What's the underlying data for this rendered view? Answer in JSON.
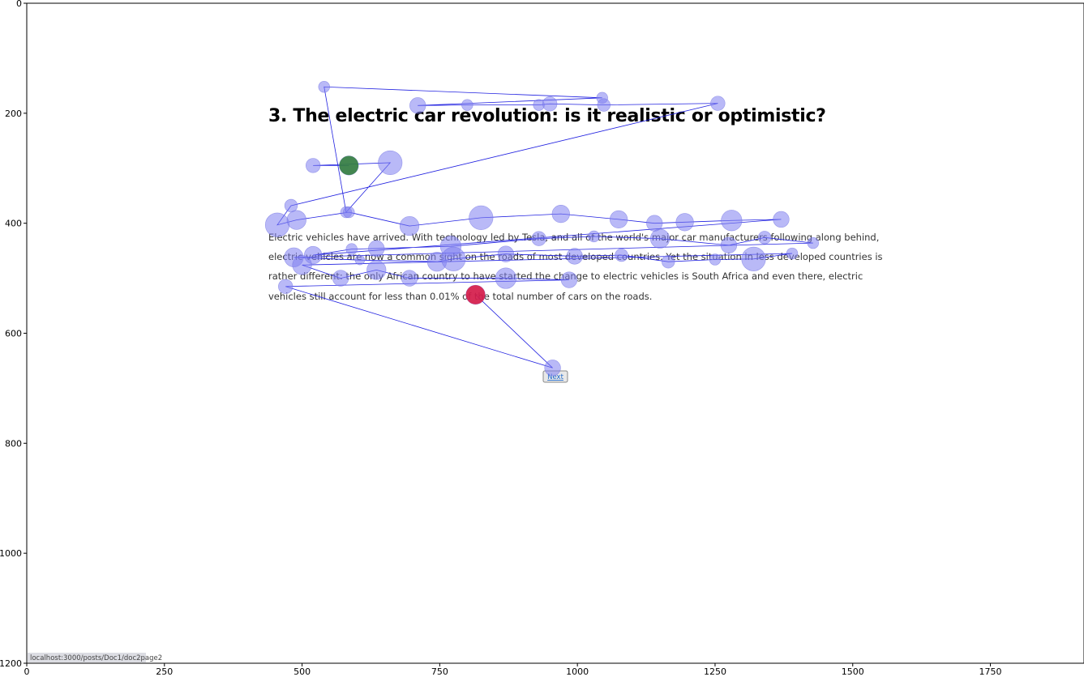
{
  "page": {
    "title": "3. The electric car revolution: is it realistic or optimistic?",
    "paragraph_lines": [
      "Electric vehicles have arrived. With technology led by Tesla, and all of the world's major car manufacturers following along behind,",
      "electric vehicles are now a common sight on the roads of most developed countries. Yet the situation in less developed countries is",
      "rather different: the only African country to have started the change to electric vehicles is South Africa and even there, electric",
      "vehicles still account for less than 0.01% of the total number of cars on the roads."
    ],
    "next_button_label": "Next",
    "status_url": "localhost:3000/posts/Doc1/doc2page2"
  },
  "chart_data": {
    "type": "scatter",
    "xlim": [
      0,
      1920
    ],
    "ylim": [
      1200,
      0
    ],
    "x_ticks": [
      0,
      250,
      500,
      750,
      1000,
      1250,
      1500,
      1750
    ],
    "y_ticks": [
      0,
      200,
      400,
      600,
      800,
      1000,
      1200
    ],
    "colors": {
      "fixation": "#8080f0",
      "path": "#2020e0",
      "start": "#2e7d32",
      "end": "#dc143c"
    },
    "start_point": {
      "x": 585,
      "y": 295,
      "r": 12
    },
    "end_point": {
      "x": 815,
      "y": 530,
      "r": 12
    },
    "path": [
      {
        "x": 585,
        "y": 295,
        "r": 12
      },
      {
        "x": 520,
        "y": 295,
        "r": 9
      },
      {
        "x": 660,
        "y": 290,
        "r": 15
      },
      {
        "x": 580,
        "y": 380,
        "r": 7
      },
      {
        "x": 540,
        "y": 152,
        "r": 7
      },
      {
        "x": 1045,
        "y": 172,
        "r": 7
      },
      {
        "x": 710,
        "y": 186,
        "r": 10
      },
      {
        "x": 800,
        "y": 185,
        "r": 7
      },
      {
        "x": 930,
        "y": 185,
        "r": 7
      },
      {
        "x": 950,
        "y": 183,
        "r": 9
      },
      {
        "x": 1048,
        "y": 185,
        "r": 8
      },
      {
        "x": 1255,
        "y": 182,
        "r": 9
      },
      {
        "x": 480,
        "y": 368,
        "r": 8
      },
      {
        "x": 455,
        "y": 403,
        "r": 15
      },
      {
        "x": 490,
        "y": 394,
        "r": 12
      },
      {
        "x": 585,
        "y": 380,
        "r": 7
      },
      {
        "x": 695,
        "y": 405,
        "r": 12
      },
      {
        "x": 825,
        "y": 390,
        "r": 15
      },
      {
        "x": 970,
        "y": 383,
        "r": 11
      },
      {
        "x": 1075,
        "y": 393,
        "r": 11
      },
      {
        "x": 1140,
        "y": 400,
        "r": 10
      },
      {
        "x": 1195,
        "y": 398,
        "r": 11
      },
      {
        "x": 1280,
        "y": 395,
        "r": 13
      },
      {
        "x": 1370,
        "y": 393,
        "r": 10
      },
      {
        "x": 520,
        "y": 458,
        "r": 11
      },
      {
        "x": 590,
        "y": 447,
        "r": 7
      },
      {
        "x": 635,
        "y": 446,
        "r": 10
      },
      {
        "x": 770,
        "y": 442,
        "r": 13
      },
      {
        "x": 930,
        "y": 428,
        "r": 9
      },
      {
        "x": 1030,
        "y": 424,
        "r": 7
      },
      {
        "x": 1150,
        "y": 428,
        "r": 12
      },
      {
        "x": 1275,
        "y": 440,
        "r": 10
      },
      {
        "x": 1340,
        "y": 426,
        "r": 8
      },
      {
        "x": 1428,
        "y": 436,
        "r": 7
      },
      {
        "x": 485,
        "y": 462,
        "r": 12
      },
      {
        "x": 605,
        "y": 467,
        "r": 6
      },
      {
        "x": 745,
        "y": 470,
        "r": 12
      },
      {
        "x": 775,
        "y": 465,
        "r": 15
      },
      {
        "x": 870,
        "y": 456,
        "r": 10
      },
      {
        "x": 995,
        "y": 460,
        "r": 10
      },
      {
        "x": 1080,
        "y": 458,
        "r": 8
      },
      {
        "x": 1165,
        "y": 470,
        "r": 8
      },
      {
        "x": 1250,
        "y": 466,
        "r": 7
      },
      {
        "x": 1320,
        "y": 465,
        "r": 15
      },
      {
        "x": 1390,
        "y": 455,
        "r": 7
      },
      {
        "x": 500,
        "y": 476,
        "r": 12
      },
      {
        "x": 570,
        "y": 500,
        "r": 10
      },
      {
        "x": 635,
        "y": 485,
        "r": 12
      },
      {
        "x": 695,
        "y": 500,
        "r": 10
      },
      {
        "x": 870,
        "y": 500,
        "r": 13
      },
      {
        "x": 985,
        "y": 503,
        "r": 10
      },
      {
        "x": 470,
        "y": 515,
        "r": 9
      },
      {
        "x": 955,
        "y": 663,
        "r": 10
      },
      {
        "x": 815,
        "y": 530,
        "r": 12
      }
    ]
  }
}
